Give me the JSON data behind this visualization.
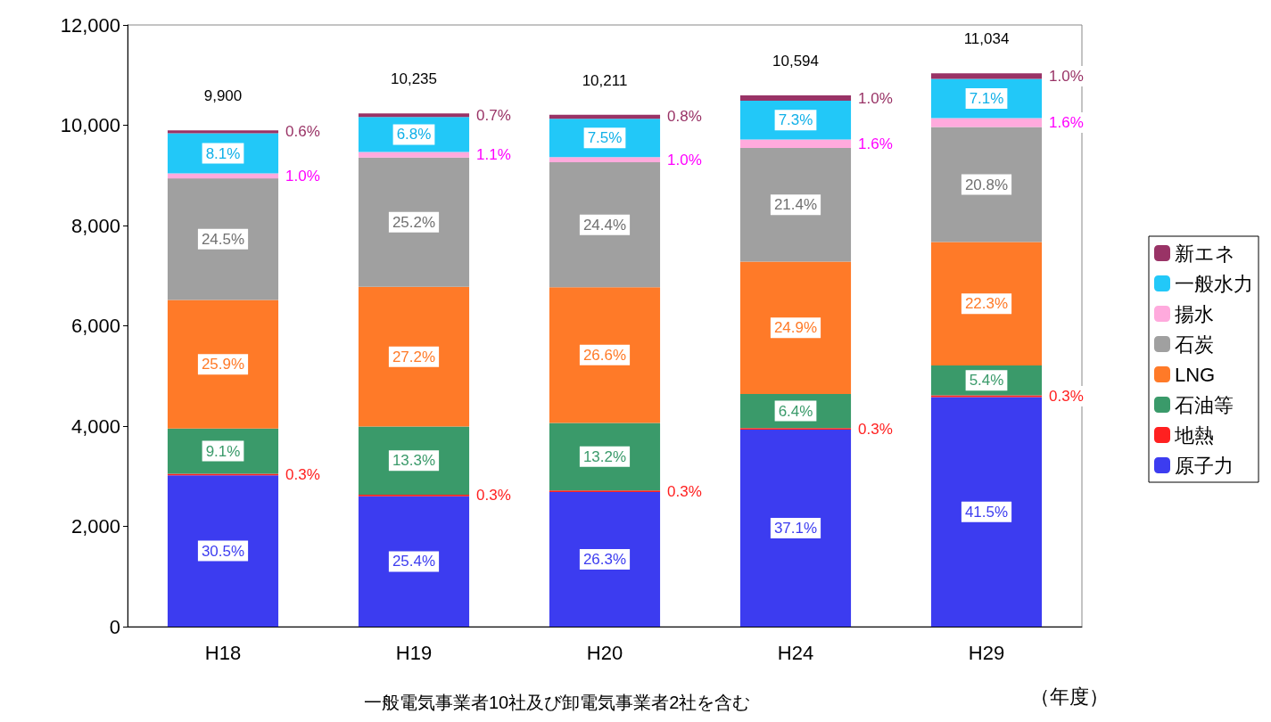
{
  "chart_data": {
    "type": "bar",
    "stacked": true,
    "categories": [
      "H18",
      "H19",
      "H20",
      "H24",
      "H29"
    ],
    "xlabel": "（年度）",
    "ylim": [
      0,
      12000
    ],
    "yticks": [
      {
        "value": 0,
        "label": "0"
      },
      {
        "value": 2000,
        "label": "2,000"
      },
      {
        "value": 4000,
        "label": "4,000"
      },
      {
        "value": 6000,
        "label": "6,000"
      },
      {
        "value": 8000,
        "label": "8,000"
      },
      {
        "value": 10000,
        "label": "10,000"
      },
      {
        "value": 12000,
        "label": "12,000"
      }
    ],
    "grid": false,
    "legend": "right",
    "totals": [
      "9,900",
      "10,235",
      "10,211",
      "10,594",
      "11,034"
    ],
    "series": [
      {
        "name": "原子力",
        "color": "#3c3cf0",
        "values": [
          3020,
          2600,
          2685,
          3930,
          4579
        ]
      },
      {
        "name": "地熱",
        "color": "#ff2020",
        "values": [
          30,
          31,
          31,
          32,
          33
        ]
      },
      {
        "name": "石油等",
        "color": "#3a9a6a",
        "values": [
          901,
          1361,
          1348,
          678,
          596
        ]
      },
      {
        "name": "LNG",
        "color": "#ff7a28",
        "values": [
          2564,
          2784,
          2706,
          2638,
          2461
        ]
      },
      {
        "name": "石炭",
        "color": "#a0a0a0",
        "values": [
          2425,
          2578,
          2491,
          2267,
          2295
        ]
      },
      {
        "name": "揚水",
        "color": "#ffaadd",
        "values": [
          99,
          113,
          102,
          170,
          177
        ]
      },
      {
        "name": "一般水力",
        "color": "#22c8f8",
        "values": [
          802,
          696,
          766,
          773,
          783
        ]
      },
      {
        "name": "新エネ",
        "color": "#993366",
        "values": [
          59,
          72,
          82,
          106,
          110
        ]
      }
    ],
    "annotations": [
      "30.5%",
      "0.3%",
      "9.1%",
      "25.9%",
      "24.5%",
      "1.0%",
      "8.1%",
      "0.6%",
      "25.4%",
      "0.3%",
      "13.3%",
      "27.2%",
      "25.2%",
      "1.1%",
      "6.8%",
      "0.7%",
      "26.3%",
      "0.3%",
      "13.2%",
      "26.6%",
      "24.4%",
      "1.0%",
      "7.5%",
      "0.8%",
      "37.1%",
      "0.3%",
      "6.4%",
      "24.9%",
      "21.4%",
      "1.6%",
      "7.3%",
      "1.0%",
      "41.5%",
      "0.3%",
      "5.4%",
      "22.3%",
      "20.8%",
      "1.6%",
      "7.1%",
      "1.0%",
      "一般電気事業者10社及び卸電気事業者2社を含む"
    ]
  }
}
